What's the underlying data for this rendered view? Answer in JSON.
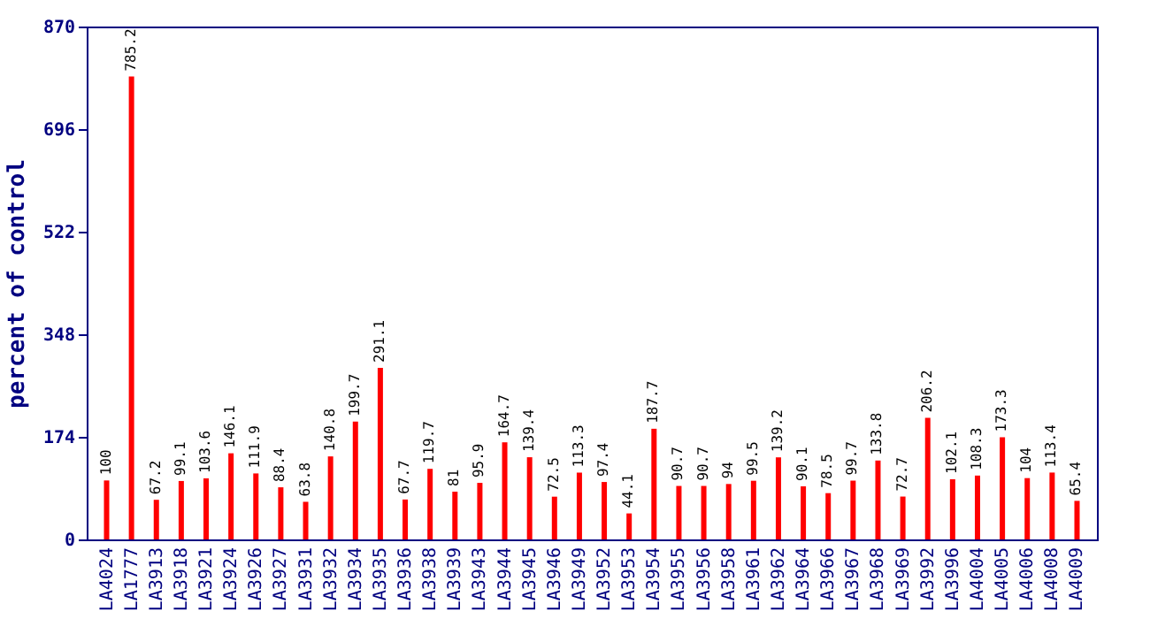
{
  "chart_data": {
    "type": "bar",
    "ylabel": "percent of control",
    "categories": [
      "LA4024",
      "LA1777",
      "LA3913",
      "LA3918",
      "LA3921",
      "LA3924",
      "LA3926",
      "LA3927",
      "LA3931",
      "LA3932",
      "LA3934",
      "LA3935",
      "LA3936",
      "LA3938",
      "LA3939",
      "LA3943",
      "LA3944",
      "LA3945",
      "LA3946",
      "LA3949",
      "LA3952",
      "LA3953",
      "LA3954",
      "LA3955",
      "LA3956",
      "LA3958",
      "LA3961",
      "LA3962",
      "LA3964",
      "LA3966",
      "LA3967",
      "LA3968",
      "LA3969",
      "LA3992",
      "LA3996",
      "LA4004",
      "LA4005",
      "LA4006",
      "LA4008",
      "LA4009"
    ],
    "values": [
      100,
      785.2,
      67.2,
      99.1,
      103.6,
      146.1,
      111.9,
      88.4,
      63.8,
      140.8,
      199.7,
      291.1,
      67.7,
      119.7,
      81,
      95.9,
      164.7,
      139.4,
      72.5,
      113.3,
      97.4,
      44.1,
      187.7,
      90.7,
      90.7,
      94,
      99.5,
      139.2,
      90.1,
      78.5,
      99.7,
      133.8,
      72.7,
      206.2,
      102.1,
      108.3,
      173.3,
      104,
      113.4,
      65.4
    ],
    "color": "#ff0000",
    "ylim": [
      0,
      870
    ],
    "yticks": [
      0,
      174,
      348,
      522,
      696,
      870
    ],
    "data_labels": true
  }
}
